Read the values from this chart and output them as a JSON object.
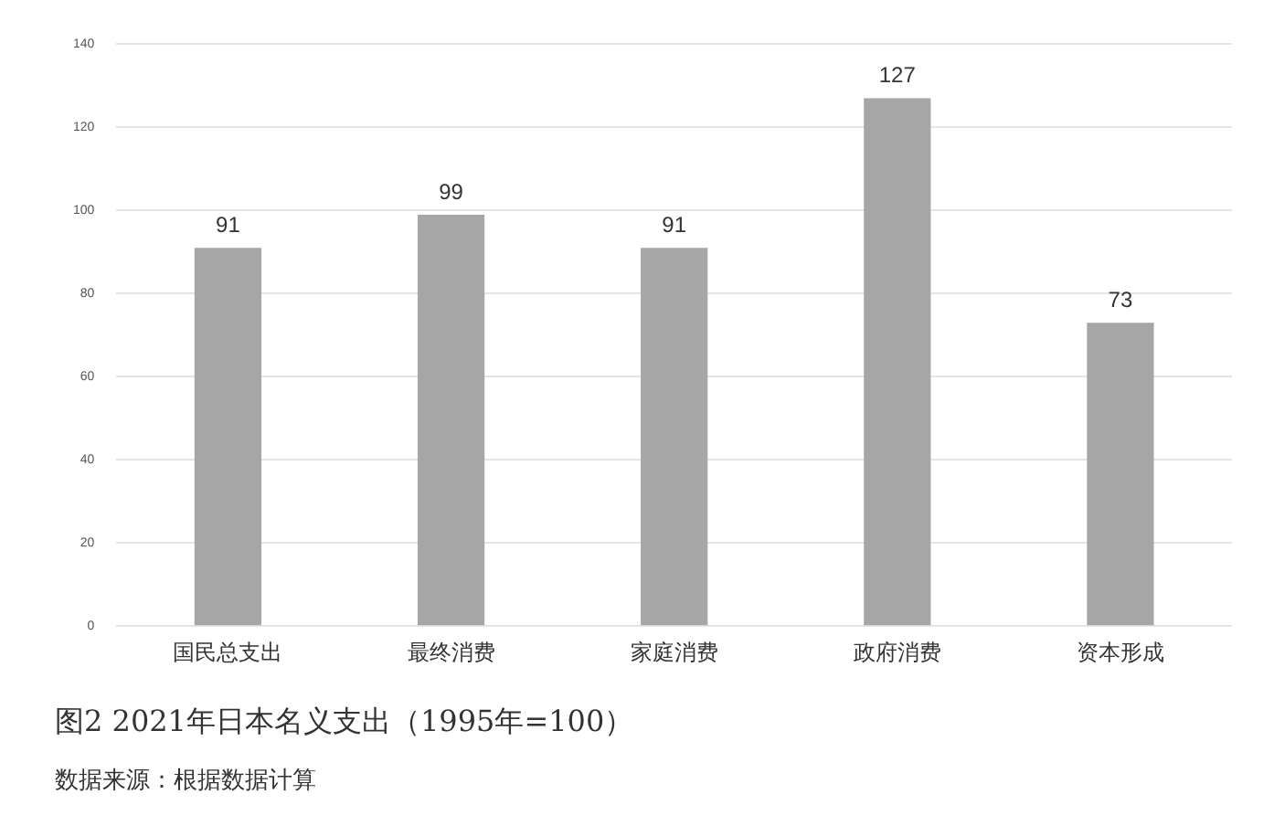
{
  "chart_data": {
    "type": "bar",
    "title": "图2 2021年日本名义支出（1995年=100）",
    "annotations": [
      "数据来源：根据数据计算"
    ],
    "categories": [
      "国民总支出",
      "最终消费",
      "家庭消费",
      "政府消费",
      "资本形成"
    ],
    "values": [
      91,
      99,
      91,
      127,
      73
    ],
    "color": "#a6a6a7",
    "ylim": [
      0,
      140
    ],
    "yticks": [
      0,
      20,
      40,
      60,
      80,
      100,
      120,
      140
    ],
    "grid": "y",
    "data_labels": true
  }
}
